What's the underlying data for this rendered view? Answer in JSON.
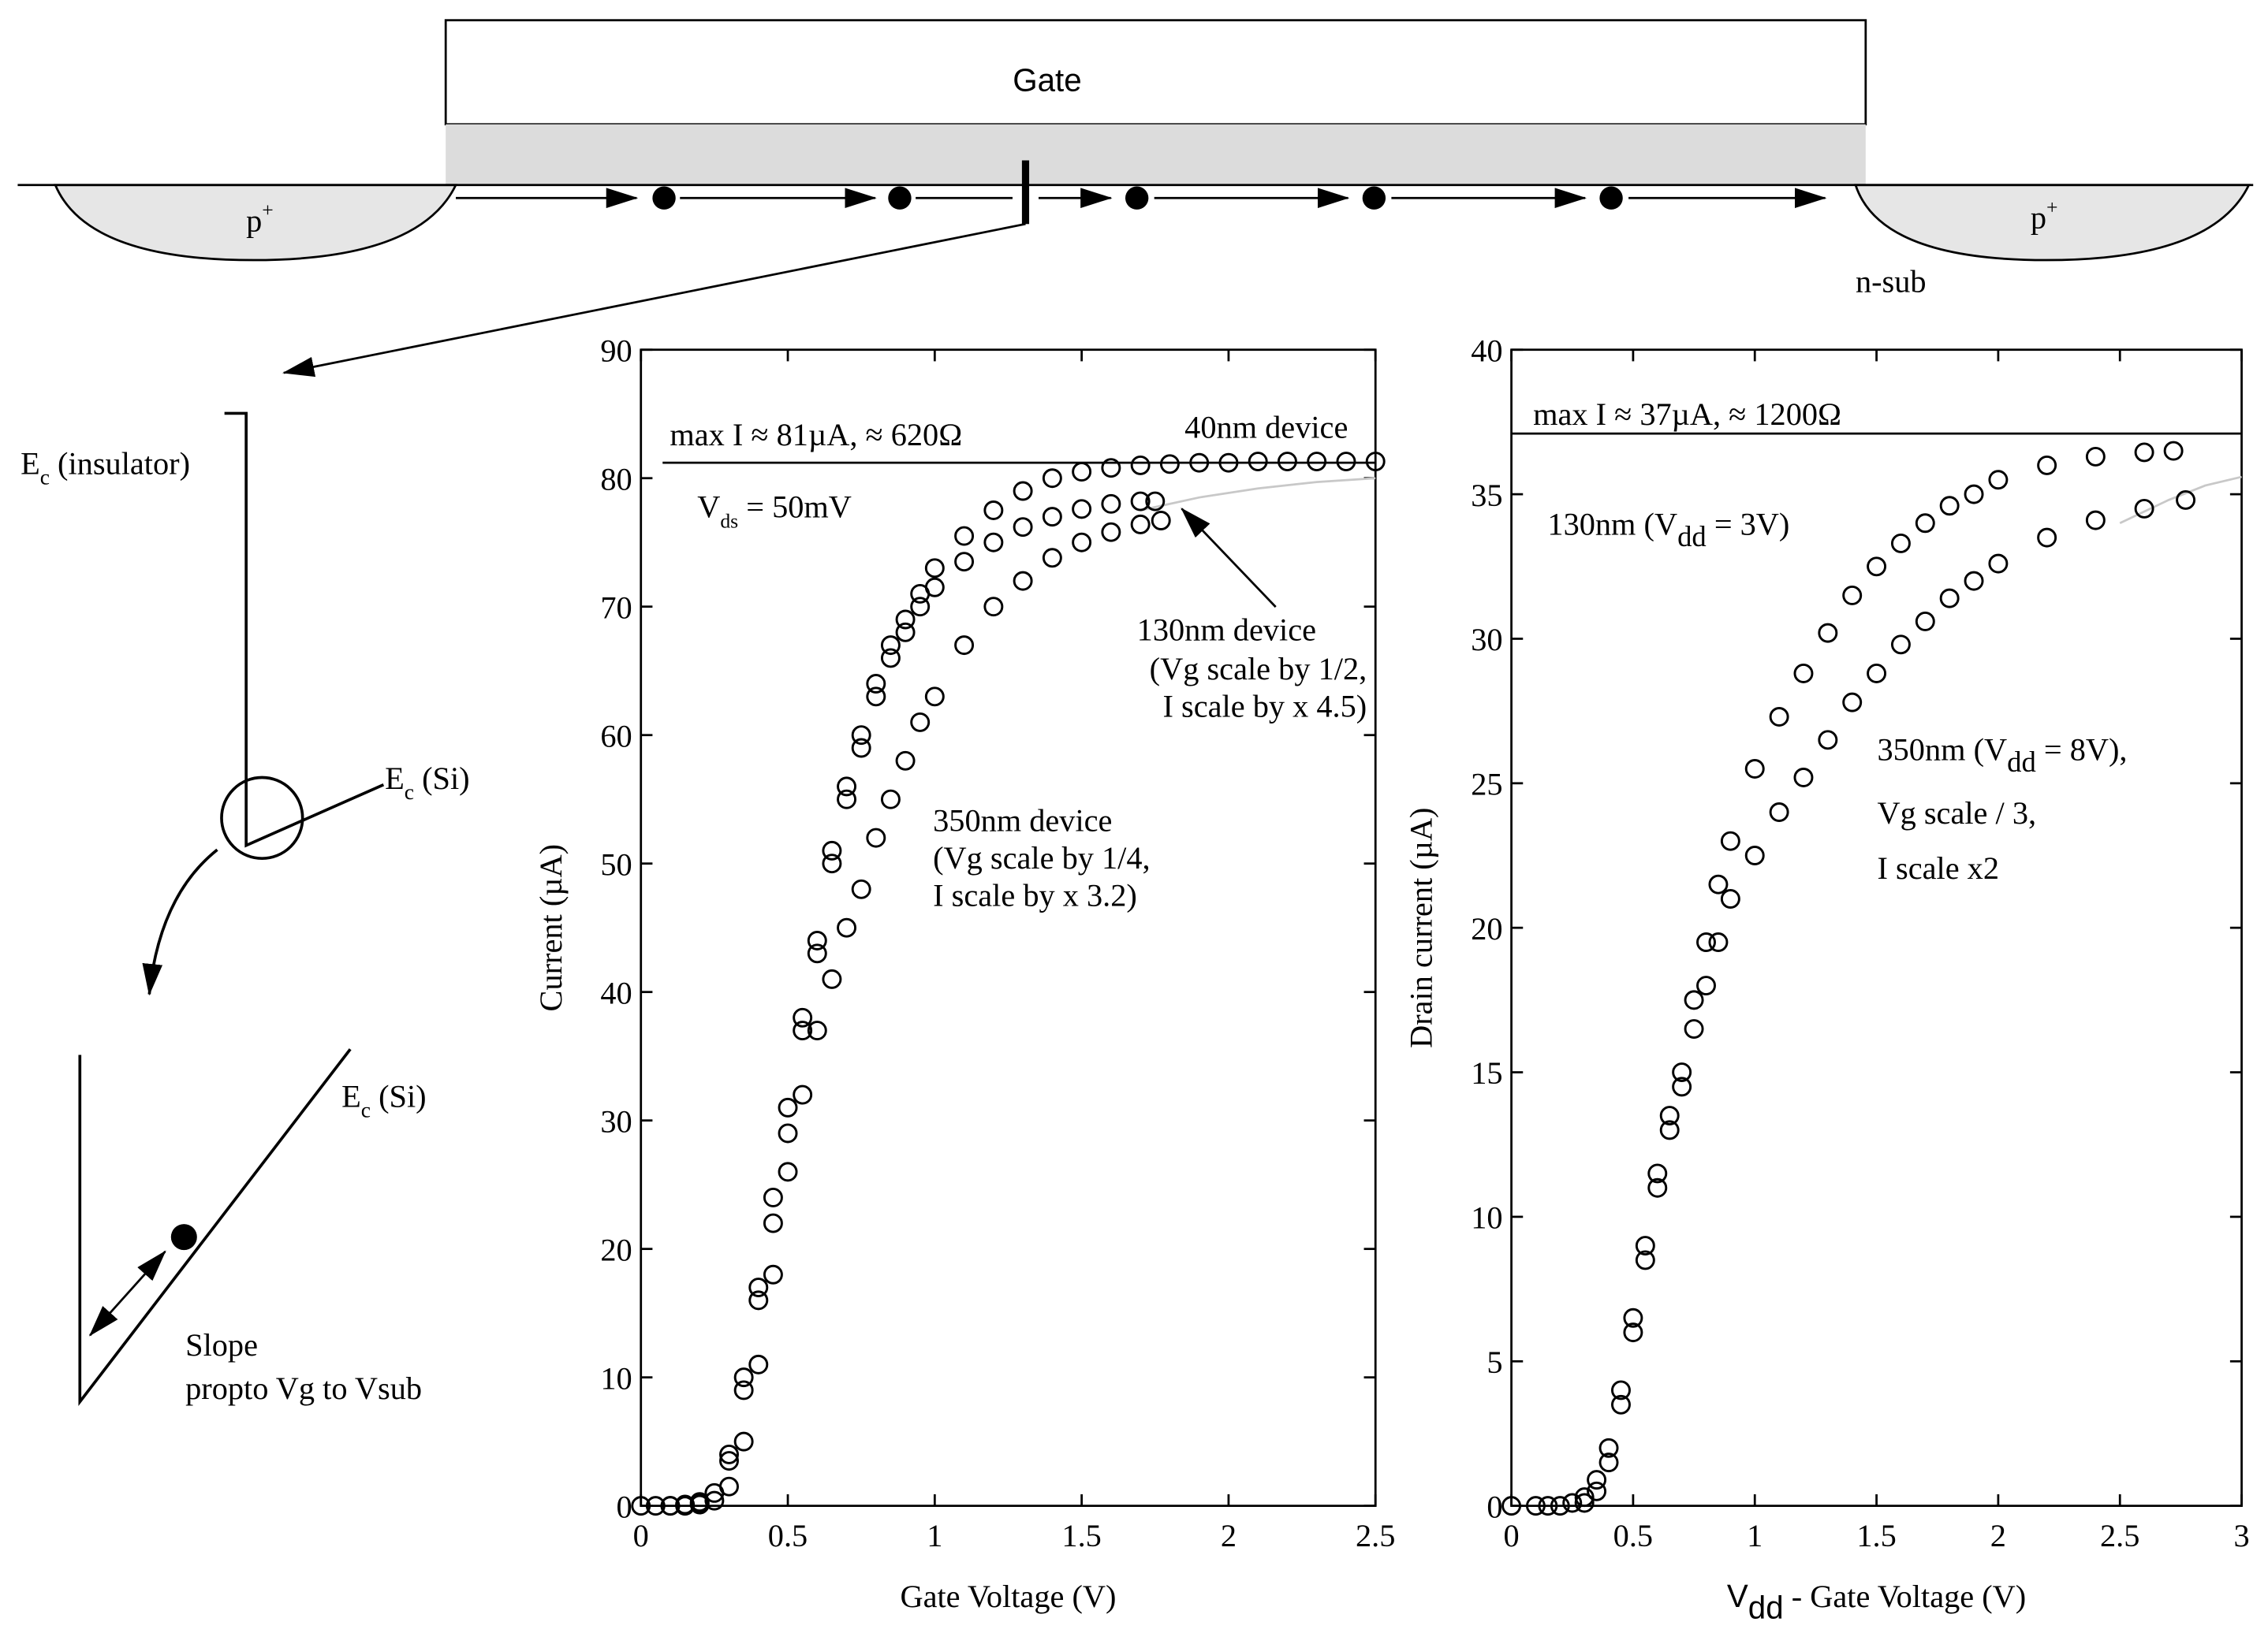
{
  "diagram": {
    "gate": "Gate",
    "source": [
      "p",
      "+"
    ],
    "drain": [
      "p",
      "+"
    ],
    "substrate": "n-sub",
    "ec_insulator": [
      "E",
      "c",
      " (insulator)"
    ],
    "ec_si_top": [
      "E",
      "c",
      " (Si)"
    ],
    "ec_si_bottom": [
      "E",
      "c",
      " (Si)"
    ],
    "slope": [
      "Slope",
      "propto Vg to Vsub"
    ]
  },
  "chart_data": [
    {
      "type": "scatter",
      "xlabel": "Gate Voltage (V)",
      "ylabel": "Current (µA)",
      "xlim": [
        0,
        2.5
      ],
      "ylim": [
        0,
        90
      ],
      "xticks": [
        0,
        0.5,
        1,
        1.5,
        2,
        2.5
      ],
      "yticks": [
        0,
        10,
        20,
        30,
        40,
        50,
        60,
        70,
        80,
        90
      ],
      "reference_line": 81.2,
      "annotations": {
        "max": "max I ≈ 81µA, ≈ 620Ω",
        "vds": [
          "V",
          "ds",
          " = 50mV"
        ],
        "d40": "40nm device",
        "d130": [
          "130nm device",
          "(Vg scale by 1/2,",
          "I scale by x 4.5)"
        ],
        "d350": [
          "350nm device",
          "(Vg scale by 1/4,",
          "I scale by x 3.2)"
        ]
      },
      "series": [
        {
          "color": "#000000",
          "x": [
            0,
            0.05,
            0.1,
            0.15,
            0.2,
            0.25,
            0.3,
            0.35,
            0.4,
            0.45,
            0.5,
            0.55,
            0.6,
            0.65,
            0.7,
            0.75,
            0.8,
            0.85,
            0.9,
            0.95,
            1.0,
            1.1,
            1.2,
            1.3,
            1.4,
            1.5,
            1.6,
            1.7,
            1.8,
            1.9,
            2.0,
            2.1,
            2.2,
            2.3,
            2.4,
            2.5
          ],
          "values": [
            0,
            0,
            0,
            0.1,
            0.3,
            1,
            4,
            10,
            17,
            24,
            31,
            38,
            44,
            51,
            56,
            60,
            64,
            67,
            69,
            71,
            73,
            75.5,
            77.5,
            79,
            80,
            80.5,
            80.8,
            81,
            81.1,
            81.2,
            81.2,
            81.3,
            81.3,
            81.3,
            81.3,
            81.3
          ]
        },
        {
          "color": "#000000",
          "x": [
            0.1,
            0.2,
            0.3,
            0.35,
            0.4,
            0.45,
            0.5,
            0.55,
            0.6,
            0.65,
            0.7,
            0.75,
            0.8,
            0.85,
            0.9,
            0.95,
            1.0,
            1.1,
            1.2,
            1.3,
            1.4,
            1.5,
            1.6,
            1.7,
            1.75
          ],
          "values": [
            0,
            0.2,
            3.5,
            9,
            16,
            22,
            29,
            37,
            43,
            50,
            55,
            59,
            63,
            66,
            68,
            70,
            71.5,
            73.5,
            75,
            76.2,
            77,
            77.6,
            78,
            78.2,
            78.2
          ]
        },
        {
          "color": "#000000",
          "x": [
            0.15,
            0.2,
            0.25,
            0.3,
            0.35,
            0.4,
            0.45,
            0.5,
            0.55,
            0.6,
            0.65,
            0.7,
            0.75,
            0.8,
            0.85,
            0.9,
            0.95,
            1.0,
            1.1,
            1.2,
            1.3,
            1.4,
            1.5,
            1.6,
            1.7,
            1.77
          ],
          "values": [
            0,
            0.1,
            0.4,
            1.5,
            5,
            11,
            18,
            26,
            32,
            37,
            41,
            45,
            48,
            52,
            55,
            58,
            61,
            63,
            67,
            70,
            72,
            73.8,
            75,
            75.8,
            76.4,
            76.7
          ]
        }
      ],
      "fit": {
        "color": "#c8c8c8",
        "x": [
          1.7,
          1.9,
          2.1,
          2.3,
          2.5
        ],
        "values": [
          77.5,
          78.5,
          79.2,
          79.7,
          80
        ]
      }
    },
    {
      "type": "scatter",
      "xlabel": [
        "V",
        "dd",
        " - Gate Voltage (V)"
      ],
      "ylabel": "Drain current (µA)",
      "xlim": [
        0,
        3
      ],
      "ylim": [
        0,
        40
      ],
      "xticks": [
        0,
        0.5,
        1,
        1.5,
        2,
        2.5,
        3
      ],
      "yticks": [
        0,
        5,
        10,
        15,
        20,
        25,
        30,
        35,
        40
      ],
      "reference_line": 37.1,
      "annotations": {
        "max": "max I ≈ 37µA, ≈ 1200Ω",
        "d130": [
          "130nm (V",
          "dd",
          " = 3V)"
        ],
        "d350": [
          "350nm (V",
          "dd",
          " = 8V),",
          "Vg scale / 3,",
          "I scale x2"
        ]
      },
      "series": [
        {
          "color": "#000000",
          "x": [
            0,
            0.1,
            0.15,
            0.2,
            0.25,
            0.3,
            0.35,
            0.4,
            0.45,
            0.5,
            0.55,
            0.6,
            0.65,
            0.7,
            0.75,
            0.8,
            0.85,
            0.9,
            1.0,
            1.1,
            1.2,
            1.3,
            1.4,
            1.5,
            1.6,
            1.7,
            1.8,
            1.9,
            2.0,
            2.2,
            2.4,
            2.6,
            2.72
          ],
          "values": [
            0,
            0,
            0,
            0,
            0.1,
            0.3,
            0.9,
            2,
            4,
            6.5,
            9,
            11.5,
            13.5,
            15,
            17.5,
            19.5,
            21.5,
            23,
            25.5,
            27.3,
            28.8,
            30.2,
            31.5,
            32.5,
            33.3,
            34,
            34.6,
            35,
            35.5,
            36,
            36.3,
            36.45,
            36.5
          ]
        },
        {
          "color": "#000000",
          "x": [
            0.3,
            0.35,
            0.4,
            0.45,
            0.5,
            0.55,
            0.6,
            0.65,
            0.7,
            0.75,
            0.8,
            0.85,
            0.9,
            1.0,
            1.1,
            1.2,
            1.3,
            1.4,
            1.5,
            1.6,
            1.7,
            1.8,
            1.9,
            2.0,
            2.2,
            2.4,
            2.6,
            2.77
          ],
          "values": [
            0.1,
            0.5,
            1.5,
            3.5,
            6,
            8.5,
            11,
            13,
            14.5,
            16.5,
            18,
            19.5,
            21,
            22.5,
            24,
            25.2,
            26.5,
            27.8,
            28.8,
            29.8,
            30.6,
            31.4,
            32,
            32.6,
            33.5,
            34.1,
            34.5,
            34.8
          ]
        }
      ],
      "fit": {
        "color": "#c8c8c8",
        "x": [
          2.5,
          2.7,
          2.85,
          3
        ],
        "values": [
          34,
          34.8,
          35.3,
          35.6
        ]
      }
    }
  ]
}
